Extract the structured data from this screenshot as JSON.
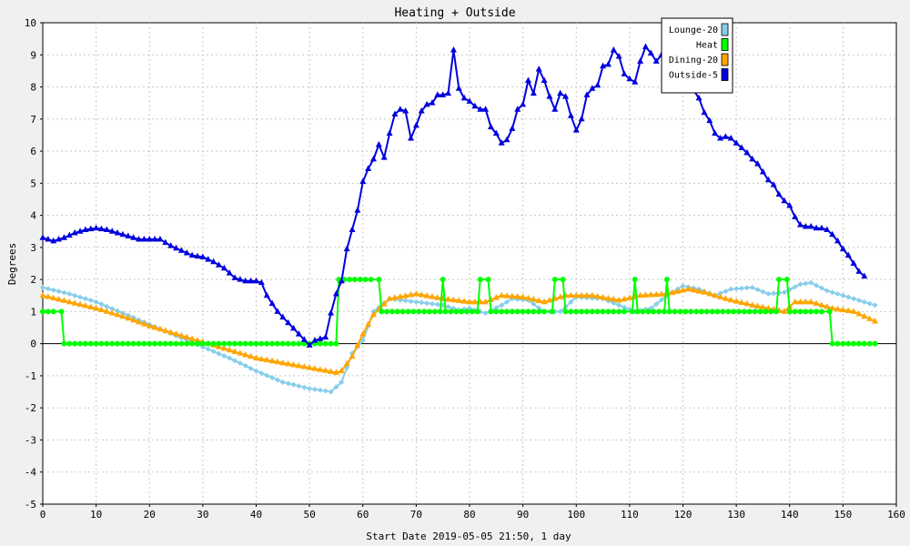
{
  "chart_data": {
    "type": "line",
    "title": "Heating + Outside",
    "xlabel": "Start Date 2019-05-05 21:50, 1 day",
    "ylabel": "Degrees",
    "xlim": [
      0,
      160
    ],
    "ylim": [
      -5,
      10
    ],
    "x_ticks": [
      0,
      10,
      20,
      30,
      40,
      50,
      60,
      70,
      80,
      90,
      100,
      110,
      120,
      130,
      140,
      150,
      160
    ],
    "y_ticks": [
      -5,
      -4,
      -3,
      -2,
      -1,
      0,
      1,
      2,
      3,
      4,
      5,
      6,
      7,
      8,
      9,
      10
    ],
    "grid": true,
    "legend_position": "top-right",
    "series": [
      {
        "name": "Lounge-20",
        "color": "#87ceeb",
        "marker": "diamond",
        "points": [
          [
            0,
            1.75
          ],
          [
            5,
            1.55
          ],
          [
            10,
            1.3
          ],
          [
            15,
            0.95
          ],
          [
            20,
            0.6
          ],
          [
            25,
            0.25
          ],
          [
            30,
            -0.1
          ],
          [
            35,
            -0.45
          ],
          [
            40,
            -0.85
          ],
          [
            45,
            -1.2
          ],
          [
            50,
            -1.4
          ],
          [
            54,
            -1.5
          ],
          [
            56,
            -1.2
          ],
          [
            58,
            -0.3
          ],
          [
            60,
            0.1
          ],
          [
            62,
            1.0
          ],
          [
            65,
            1.4
          ],
          [
            70,
            1.3
          ],
          [
            75,
            1.2
          ],
          [
            78,
            1.05
          ],
          [
            80,
            1.1
          ],
          [
            83,
            0.95
          ],
          [
            86,
            1.2
          ],
          [
            88,
            1.4
          ],
          [
            91,
            1.35
          ],
          [
            94,
            1.0
          ],
          [
            97,
            1.0
          ],
          [
            100,
            1.45
          ],
          [
            105,
            1.4
          ],
          [
            108,
            1.2
          ],
          [
            111,
            1.0
          ],
          [
            114,
            1.1
          ],
          [
            117,
            1.5
          ],
          [
            120,
            1.8
          ],
          [
            123,
            1.7
          ],
          [
            126,
            1.5
          ],
          [
            129,
            1.7
          ],
          [
            133,
            1.75
          ],
          [
            136,
            1.55
          ],
          [
            139,
            1.6
          ],
          [
            142,
            1.85
          ],
          [
            144,
            1.9
          ],
          [
            147,
            1.65
          ],
          [
            150,
            1.5
          ],
          [
            153,
            1.35
          ],
          [
            156,
            1.2
          ]
        ]
      },
      {
        "name": "Heat",
        "color": "#00ff00",
        "marker": "circle",
        "points": [
          [
            0,
            1
          ],
          [
            3.5,
            1
          ],
          [
            4,
            0
          ],
          [
            54,
            0
          ],
          [
            55,
            0
          ],
          [
            55.5,
            2
          ],
          [
            63,
            2
          ],
          [
            63.5,
            1
          ],
          [
            74.5,
            1
          ],
          [
            75,
            2
          ],
          [
            75.5,
            1
          ],
          [
            81.5,
            1
          ],
          [
            82,
            2
          ],
          [
            83.5,
            2
          ],
          [
            84,
            1
          ],
          [
            95.5,
            1
          ],
          [
            96,
            2
          ],
          [
            97.5,
            2
          ],
          [
            98,
            1
          ],
          [
            110.5,
            1
          ],
          [
            111,
            2
          ],
          [
            111.5,
            1
          ],
          [
            116.5,
            1
          ],
          [
            117,
            2
          ],
          [
            117.5,
            1
          ],
          [
            137.5,
            1
          ],
          [
            138,
            2
          ],
          [
            139.5,
            2
          ],
          [
            140,
            1
          ],
          [
            147.5,
            1
          ],
          [
            148,
            0
          ],
          [
            156,
            0
          ]
        ]
      },
      {
        "name": "Dining-20",
        "color": "#ffa500",
        "marker": "triangle",
        "points": [
          [
            0,
            1.5
          ],
          [
            5,
            1.3
          ],
          [
            10,
            1.1
          ],
          [
            15,
            0.85
          ],
          [
            20,
            0.55
          ],
          [
            25,
            0.3
          ],
          [
            30,
            0.05
          ],
          [
            35,
            -0.2
          ],
          [
            40,
            -0.45
          ],
          [
            45,
            -0.6
          ],
          [
            50,
            -0.75
          ],
          [
            55,
            -0.9
          ],
          [
            56,
            -0.85
          ],
          [
            58,
            -0.4
          ],
          [
            60,
            0.3
          ],
          [
            62,
            0.9
          ],
          [
            65,
            1.4
          ],
          [
            70,
            1.55
          ],
          [
            75,
            1.4
          ],
          [
            80,
            1.3
          ],
          [
            83,
            1.3
          ],
          [
            86,
            1.5
          ],
          [
            90,
            1.45
          ],
          [
            94,
            1.3
          ],
          [
            98,
            1.5
          ],
          [
            103,
            1.5
          ],
          [
            108,
            1.35
          ],
          [
            112,
            1.5
          ],
          [
            117,
            1.55
          ],
          [
            121,
            1.7
          ],
          [
            124,
            1.6
          ],
          [
            128,
            1.4
          ],
          [
            133,
            1.2
          ],
          [
            136,
            1.1
          ],
          [
            139,
            1.0
          ],
          [
            141,
            1.3
          ],
          [
            144,
            1.3
          ],
          [
            148,
            1.1
          ],
          [
            152,
            1.0
          ],
          [
            156,
            0.7
          ]
        ]
      },
      {
        "name": "Outside-5",
        "color": "#0000dd",
        "marker": "triangle",
        "points": [
          [
            0,
            3.3
          ],
          [
            2,
            3.2
          ],
          [
            4,
            3.3
          ],
          [
            6,
            3.45
          ],
          [
            8,
            3.55
          ],
          [
            10,
            3.6
          ],
          [
            12,
            3.55
          ],
          [
            14,
            3.45
          ],
          [
            16,
            3.35
          ],
          [
            18,
            3.25
          ],
          [
            20,
            3.25
          ],
          [
            22,
            3.25
          ],
          [
            24,
            3.05
          ],
          [
            26,
            2.9
          ],
          [
            28,
            2.75
          ],
          [
            30,
            2.7
          ],
          [
            32,
            2.55
          ],
          [
            34,
            2.35
          ],
          [
            36,
            2.05
          ],
          [
            38,
            1.95
          ],
          [
            40,
            1.95
          ],
          [
            41,
            1.9
          ],
          [
            42,
            1.5
          ],
          [
            44,
            1.0
          ],
          [
            46,
            0.65
          ],
          [
            48,
            0.3
          ],
          [
            50,
            -0.05
          ],
          [
            51,
            0.1
          ],
          [
            53,
            0.2
          ],
          [
            54,
            0.95
          ],
          [
            55,
            1.55
          ],
          [
            56,
            1.95
          ],
          [
            57,
            2.95
          ],
          [
            58,
            3.55
          ],
          [
            59,
            4.15
          ],
          [
            60,
            5.05
          ],
          [
            61,
            5.45
          ],
          [
            62,
            5.75
          ],
          [
            63,
            6.2
          ],
          [
            64,
            5.8
          ],
          [
            65,
            6.55
          ],
          [
            66,
            7.15
          ],
          [
            67,
            7.3
          ],
          [
            68,
            7.25
          ],
          [
            69,
            6.4
          ],
          [
            70,
            6.8
          ],
          [
            71,
            7.25
          ],
          [
            72,
            7.45
          ],
          [
            73,
            7.5
          ],
          [
            74,
            7.75
          ],
          [
            75,
            7.75
          ],
          [
            76,
            7.8
          ],
          [
            77,
            9.15
          ],
          [
            78,
            7.95
          ],
          [
            79,
            7.65
          ],
          [
            80,
            7.55
          ],
          [
            81,
            7.4
          ],
          [
            82,
            7.3
          ],
          [
            83,
            7.3
          ],
          [
            84,
            6.75
          ],
          [
            85,
            6.55
          ],
          [
            86,
            6.25
          ],
          [
            87,
            6.35
          ],
          [
            88,
            6.7
          ],
          [
            89,
            7.3
          ],
          [
            90,
            7.45
          ],
          [
            91,
            8.2
          ],
          [
            92,
            7.8
          ],
          [
            93,
            8.55
          ],
          [
            94,
            8.2
          ],
          [
            95,
            7.7
          ],
          [
            96,
            7.3
          ],
          [
            97,
            7.8
          ],
          [
            98,
            7.7
          ],
          [
            99,
            7.1
          ],
          [
            100,
            6.65
          ],
          [
            101,
            7.0
          ],
          [
            102,
            7.75
          ],
          [
            103,
            7.95
          ],
          [
            104,
            8.05
          ],
          [
            105,
            8.65
          ],
          [
            106,
            8.7
          ],
          [
            107,
            9.15
          ],
          [
            108,
            8.95
          ],
          [
            109,
            8.4
          ],
          [
            110,
            8.25
          ],
          [
            111,
            8.15
          ],
          [
            112,
            8.8
          ],
          [
            113,
            9.25
          ],
          [
            114,
            9.05
          ],
          [
            115,
            8.8
          ],
          [
            116,
            9.0
          ],
          [
            117,
            8.8
          ],
          [
            118,
            8.65
          ],
          [
            119,
            8.5
          ],
          [
            120,
            8.35
          ],
          [
            121,
            8.1
          ],
          [
            122,
            7.9
          ],
          [
            123,
            7.65
          ],
          [
            124,
            7.2
          ],
          [
            125,
            6.95
          ],
          [
            126,
            6.55
          ],
          [
            127,
            6.4
          ],
          [
            128,
            6.45
          ],
          [
            129,
            6.4
          ],
          [
            130,
            6.25
          ],
          [
            131,
            6.1
          ],
          [
            132,
            5.95
          ],
          [
            133,
            5.75
          ],
          [
            134,
            5.6
          ],
          [
            135,
            5.35
          ],
          [
            136,
            5.1
          ],
          [
            137,
            4.95
          ],
          [
            138,
            4.65
          ],
          [
            139,
            4.45
          ],
          [
            140,
            4.3
          ],
          [
            141,
            3.95
          ],
          [
            142,
            3.7
          ],
          [
            143,
            3.65
          ],
          [
            144,
            3.65
          ],
          [
            145,
            3.6
          ],
          [
            146,
            3.6
          ],
          [
            147,
            3.55
          ],
          [
            148,
            3.4
          ],
          [
            149,
            3.2
          ],
          [
            150,
            2.95
          ],
          [
            151,
            2.75
          ],
          [
            152,
            2.5
          ],
          [
            153,
            2.25
          ],
          [
            154,
            2.1
          ]
        ]
      }
    ]
  }
}
